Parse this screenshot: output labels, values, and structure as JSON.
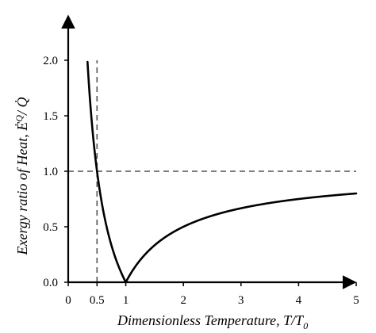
{
  "chart_data": {
    "type": "line",
    "xlabel": "Dimensionless Temperature, T/T",
    "xlabel_subscript": "0",
    "ylabel": "Exergy ratio of Heat, Ė",
    "ylabel_superscript": "Q",
    "ylabel_tail": "/ Q̇",
    "x_ticks": [
      {
        "value": 0,
        "label": "0"
      },
      {
        "value": 0.5,
        "label": "0.5"
      },
      {
        "value": 1,
        "label": "1"
      },
      {
        "value": 2,
        "label": "2"
      },
      {
        "value": 3,
        "label": "3"
      },
      {
        "value": 4,
        "label": "4"
      },
      {
        "value": 5,
        "label": "5"
      }
    ],
    "y_ticks": [
      {
        "value": 0.0,
        "label": "0.0"
      },
      {
        "value": 0.5,
        "label": "0.5"
      },
      {
        "value": 1.0,
        "label": "1.0"
      },
      {
        "value": 1.5,
        "label": "1.5"
      },
      {
        "value": 2.0,
        "label": "2.0"
      }
    ],
    "xlim": [
      0,
      5
    ],
    "ylim": [
      0,
      2
    ],
    "grid": false,
    "series": [
      {
        "color": "#000000",
        "x": [
          0.33,
          0.35,
          0.4,
          0.45,
          0.5,
          0.55,
          0.6,
          0.65,
          0.7,
          0.75,
          0.8,
          0.85,
          0.9,
          0.95,
          1.0,
          1.1,
          1.2,
          1.3,
          1.5,
          1.75,
          2.0,
          2.25,
          2.5,
          3.0,
          3.5,
          4.0,
          4.5,
          5.0
        ],
        "y": [
          2.0,
          1.86,
          1.5,
          1.22,
          1.0,
          0.82,
          0.67,
          0.54,
          0.43,
          0.33,
          0.25,
          0.18,
          0.11,
          0.05,
          0.0,
          0.09,
          0.17,
          0.23,
          0.33,
          0.43,
          0.5,
          0.56,
          0.6,
          0.67,
          0.71,
          0.75,
          0.78,
          0.8
        ]
      }
    ],
    "reference_lines": [
      {
        "orientation": "horizontal",
        "value": 1.0,
        "style": "dashed",
        "color": "#555555"
      },
      {
        "orientation": "vertical",
        "value": 0.5,
        "style": "dashed",
        "color": "#555555"
      }
    ]
  }
}
